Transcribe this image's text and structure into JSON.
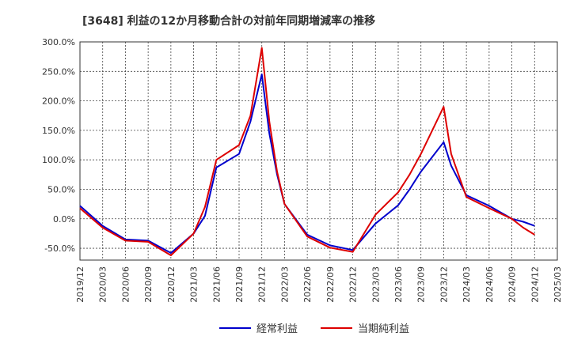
{
  "chart_data": {
    "type": "line",
    "title": "[3648]  利益の12か月移動合計の対前年同期増減率の推移",
    "xlabel": "",
    "ylabel": "",
    "ylim": [
      -70,
      300
    ],
    "y_ticks": [
      300,
      250,
      200,
      150,
      100,
      50,
      0,
      -50
    ],
    "y_tick_labels": [
      "300.0%",
      "250.0%",
      "200.0%",
      "150.0%",
      "100.0%",
      "50.0%",
      "0.0%",
      "-50.0%"
    ],
    "x_tick_labels": [
      "2019/12",
      "2020/03",
      "2020/06",
      "2020/09",
      "2020/12",
      "2021/03",
      "2021/06",
      "2021/09",
      "2021/12",
      "2022/03",
      "2022/06",
      "2022/09",
      "2022/12",
      "2023/03",
      "2023/06",
      "2023/09",
      "2023/12",
      "2024/03",
      "2024/06",
      "2024/09",
      "2024/12",
      "2025/03"
    ],
    "legend_position": "bottom-center",
    "grid": true,
    "series": [
      {
        "name": "経常利益",
        "color": "#0000cc",
        "points": [
          [
            0,
            22
          ],
          [
            1,
            -12
          ],
          [
            2,
            -35
          ],
          [
            3,
            -37
          ],
          [
            4,
            -58
          ],
          [
            5,
            -25
          ],
          [
            5.5,
            5
          ],
          [
            6,
            87
          ],
          [
            7,
            110
          ],
          [
            7.5,
            165
          ],
          [
            8,
            245
          ],
          [
            8.33,
            145
          ],
          [
            8.67,
            75
          ],
          [
            9,
            25
          ],
          [
            10,
            -27
          ],
          [
            11,
            -45
          ],
          [
            12,
            -53
          ],
          [
            13,
            -8
          ],
          [
            14,
            23
          ],
          [
            14.5,
            50
          ],
          [
            15,
            80
          ],
          [
            16,
            130
          ],
          [
            16.33,
            90
          ],
          [
            17,
            40
          ],
          [
            18,
            22
          ],
          [
            19,
            0
          ],
          [
            19.5,
            -5
          ],
          [
            20,
            -12
          ]
        ]
      },
      {
        "name": "当期純利益",
        "color": "#dd0000",
        "points": [
          [
            0,
            18
          ],
          [
            1,
            -15
          ],
          [
            2,
            -37
          ],
          [
            3,
            -39
          ],
          [
            4,
            -62
          ],
          [
            5,
            -25
          ],
          [
            5.5,
            20
          ],
          [
            6,
            100
          ],
          [
            7,
            125
          ],
          [
            7.5,
            175
          ],
          [
            8,
            290
          ],
          [
            8.33,
            165
          ],
          [
            8.67,
            80
          ],
          [
            9,
            25
          ],
          [
            10,
            -30
          ],
          [
            11,
            -49
          ],
          [
            12,
            -56
          ],
          [
            13,
            7
          ],
          [
            14,
            45
          ],
          [
            14.5,
            75
          ],
          [
            15,
            110
          ],
          [
            16,
            190
          ],
          [
            16.33,
            110
          ],
          [
            17,
            37
          ],
          [
            18,
            18
          ],
          [
            19,
            0
          ],
          [
            19.5,
            -15
          ],
          [
            20,
            -27
          ]
        ]
      }
    ]
  }
}
